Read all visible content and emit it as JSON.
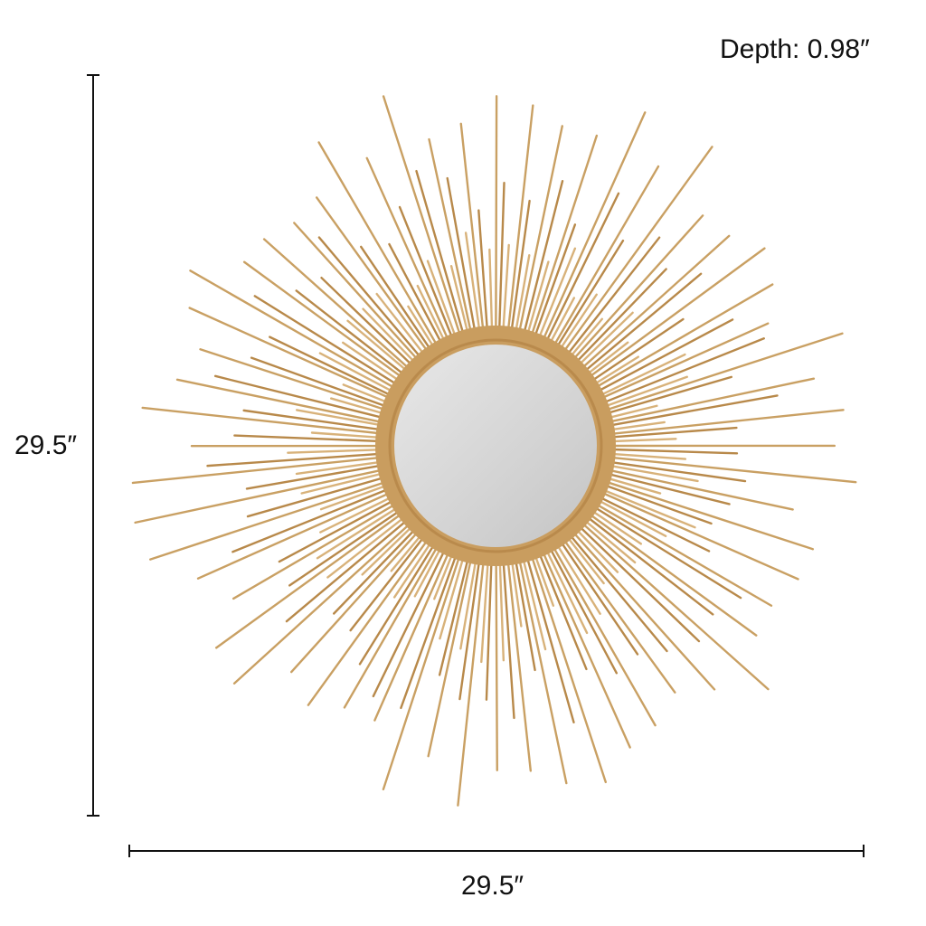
{
  "product": {
    "depth_label": "Depth: 0.98″",
    "height_label": "29.5″",
    "width_label": "29.5″",
    "colors": {
      "gold": "#c9a063",
      "gold_dark": "#b8894a",
      "mirror": "#d6d6d6",
      "dimension_line": "#111111"
    }
  }
}
